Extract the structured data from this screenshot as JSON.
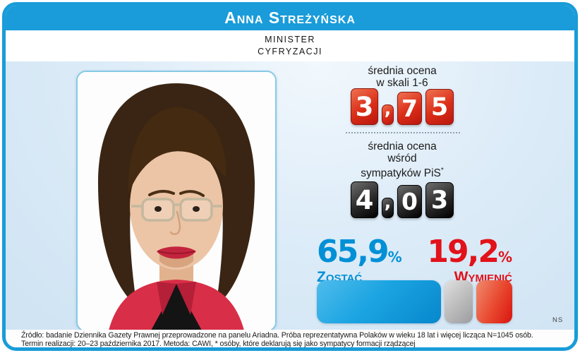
{
  "header": {
    "title": "Anna Streżyńska"
  },
  "subheader": {
    "line1": "MINISTER",
    "line2": "CYFRYZACJI"
  },
  "rating_scale": {
    "label_line1": "średnia ocena",
    "label_line2": "w skali 1-6",
    "value": "3,75",
    "digit1": "3",
    "comma": ",",
    "digit2": "7",
    "digit3": "5"
  },
  "rating_pis": {
    "label_line1": "średnia ocena",
    "label_line2": "wśród",
    "label_line3": "sympatyków PiS",
    "footnote_mark": "*",
    "value": "4,03",
    "digit1": "4",
    "comma": ",",
    "digit2": "0",
    "digit3": "3"
  },
  "verdict": {
    "keep_value": "65,9",
    "keep_percent": "%",
    "keep_label": "Zostać",
    "replace_value": "19,2",
    "replace_percent": "%",
    "replace_label": "Wymienić"
  },
  "chart_data": {
    "type": "bar",
    "orientation": "horizontal-stacked",
    "unit": "%",
    "segments": [
      {
        "label": "Zostać",
        "value": 65.9,
        "color": "#0d93d8"
      },
      {
        "label": "",
        "value": 14.9,
        "color": "#b6b6b6"
      },
      {
        "label": "Wymienić",
        "value": 19.2,
        "color": "#e01713"
      }
    ],
    "ratings": [
      {
        "label": "średnia ocena w skali 1-6",
        "value": 3.75,
        "scale": [
          1,
          6
        ]
      },
      {
        "label": "średnia ocena wśród sympatyków PiS*",
        "value": 4.03,
        "scale": [
          1,
          6
        ]
      }
    ]
  },
  "colors": {
    "frame_blue": "#199cd9",
    "keep_blue": "#0090d6",
    "replace_red": "#e2121a",
    "tile_red": "#d42a16",
    "tile_black": "#1a1a1a"
  },
  "footer": {
    "line1": "Źródło: badanie Dziennika Gazety Prawnej przeprowadzone na panelu Ariadna. Próba reprezentatywna Polaków w wieku 18 lat i więcej licząca N=1045 osób.",
    "line2": "Termin realizacji: 20–23 października 2017. Metoda: CAWI, * osóby, które deklarują się jako sympatycy formacji rządzącej"
  },
  "credit": "NS"
}
